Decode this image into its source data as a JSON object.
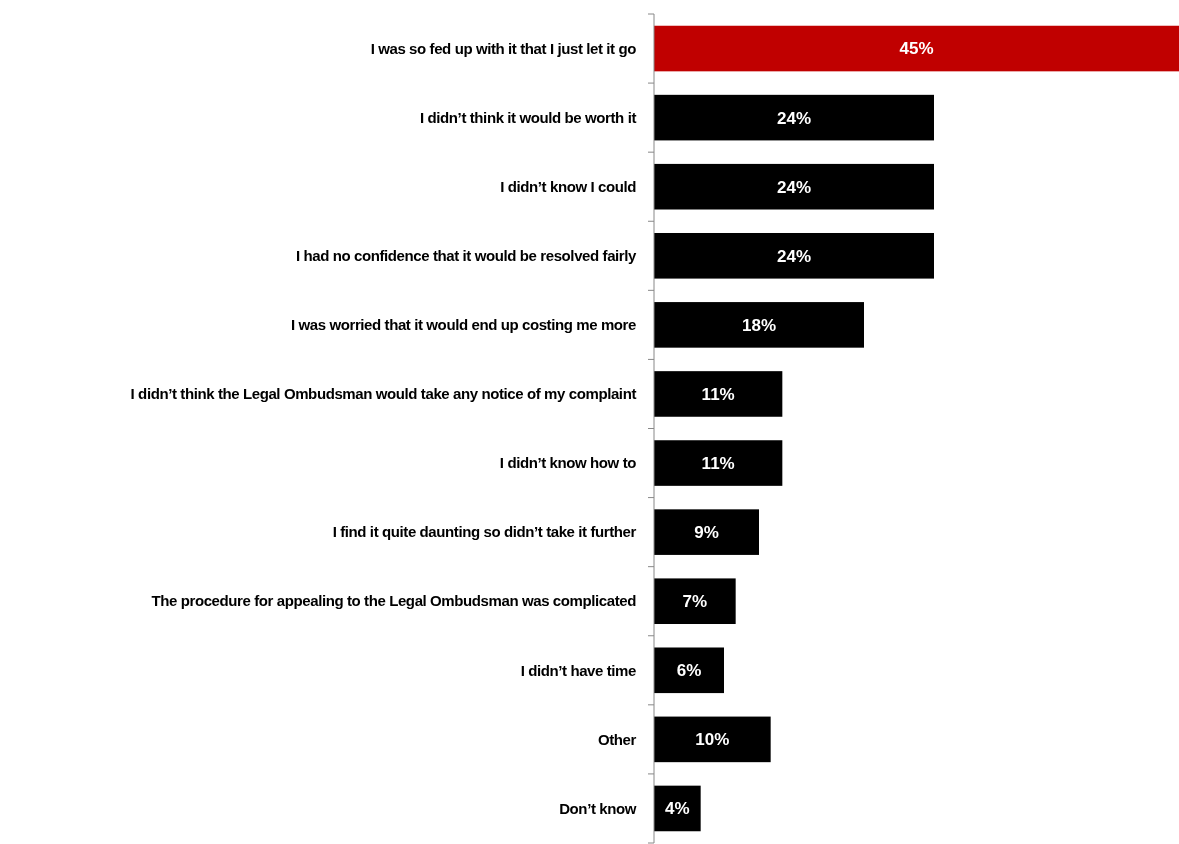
{
  "chart_data": {
    "type": "bar",
    "orientation": "horizontal",
    "categories": [
      "I was so fed up with it that I just let it go",
      "I didn’t think it would be worth it",
      "I didn’t know I could",
      "I had no confidence that it would be resolved fairly",
      "I was worried that it would end up costing me more",
      "I didn’t think the Legal Ombudsman would take any notice of my complaint",
      "I didn’t know how to",
      "I find it quite daunting so didn’t take it further",
      "The procedure for appealing to the Legal Ombudsman was complicated",
      "I didn’t have time",
      "Other",
      "Don’t know"
    ],
    "values": [
      45,
      24,
      24,
      24,
      18,
      11,
      11,
      9,
      7,
      6,
      10,
      4
    ],
    "colors": [
      "#c00000",
      "#000000",
      "#000000",
      "#000000",
      "#000000",
      "#000000",
      "#000000",
      "#000000",
      "#000000",
      "#000000",
      "#000000",
      "#000000"
    ],
    "value_labels": [
      "45%",
      "24%",
      "24%",
      "24%",
      "18%",
      "11%",
      "11%",
      "9%",
      "7%",
      "6%",
      "10%",
      "4%"
    ],
    "tick_labels": "y"
  }
}
